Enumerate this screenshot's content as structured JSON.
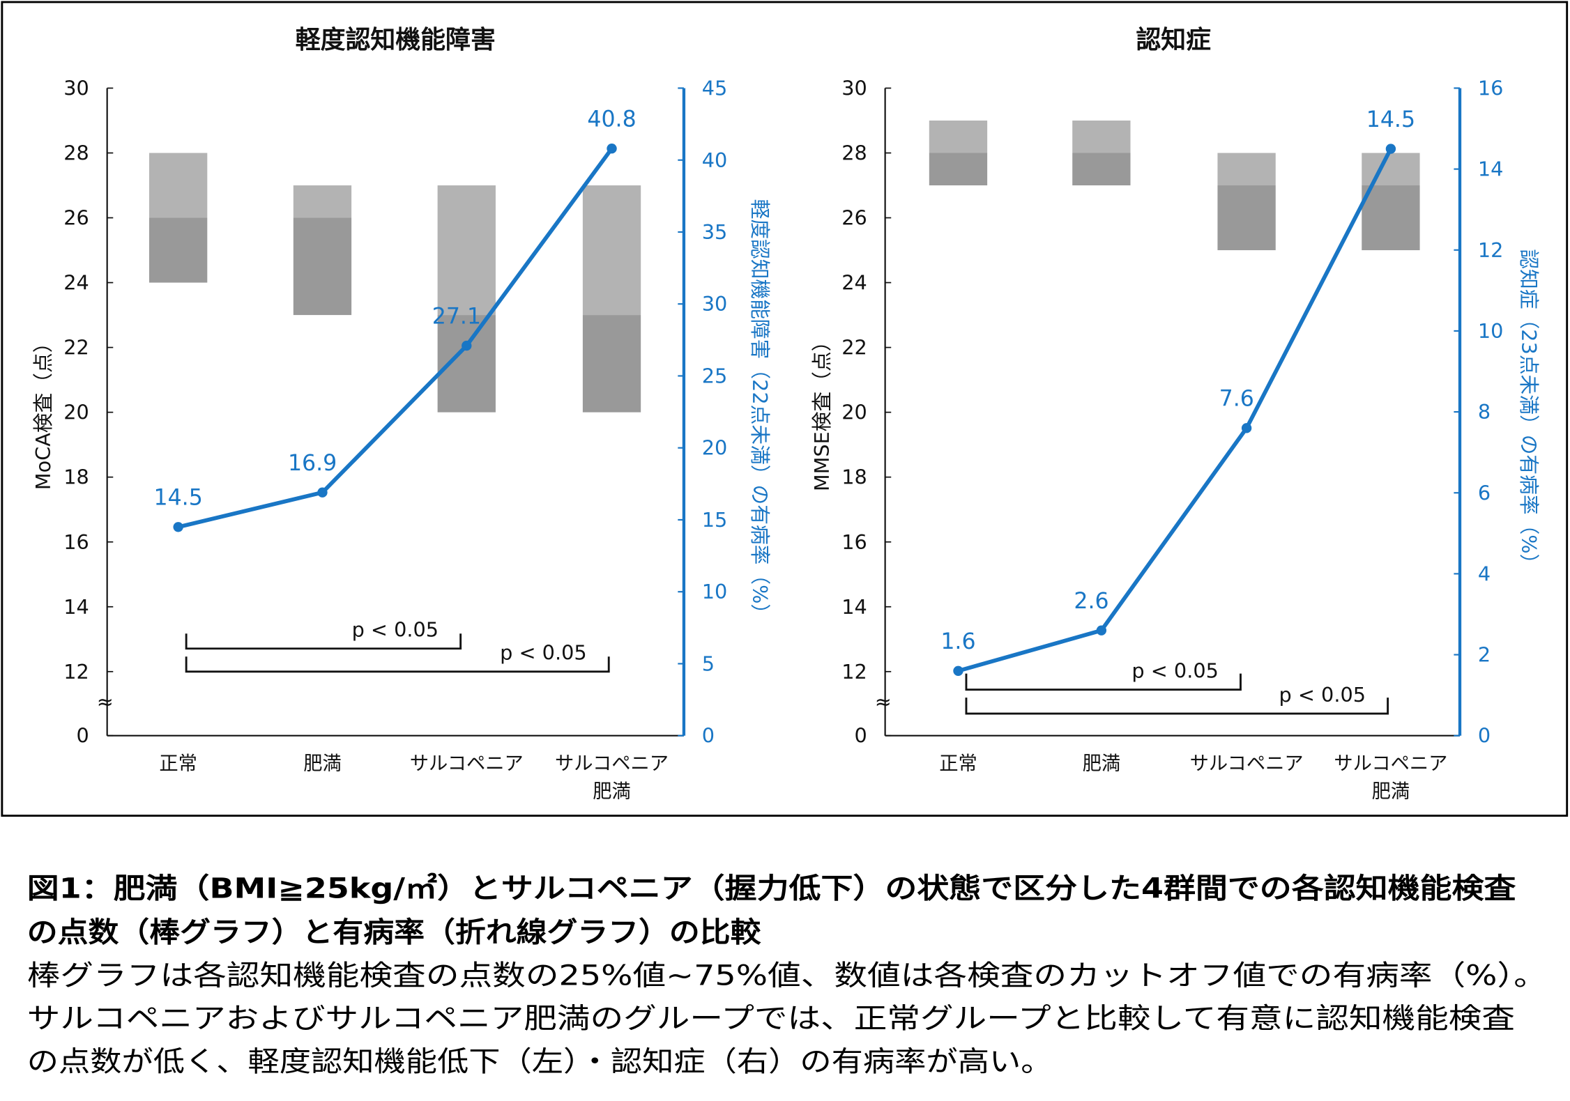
{
  "chart_data": [
    {
      "type": "bar+line",
      "title": "軽度認知機能障害",
      "categories": [
        "正常",
        "肥満",
        "サルコペニア",
        "サルコペニア|肥満"
      ],
      "ylabel": "MoCA検査（点）",
      "y2label": "軽度認知機能障害（22点未満）の有病率（%）",
      "ylim": [
        12,
        30
      ],
      "y_ticks": [
        "30",
        "28",
        "26",
        "24",
        "22",
        "20",
        "18",
        "16",
        "14",
        "12",
        "0"
      ],
      "y_break": "≈",
      "y2lim": [
        0,
        45
      ],
      "y2_ticks": [
        "45",
        "40",
        "35",
        "30",
        "25",
        "20",
        "15",
        "10",
        "5",
        "0"
      ],
      "bars": [
        {
          "q1": 24,
          "median": 26,
          "q3": 28
        },
        {
          "q1": 23,
          "median": 26,
          "q3": 27
        },
        {
          "q1": 20,
          "median": 23,
          "q3": 27
        },
        {
          "q1": 20,
          "median": 23,
          "q3": 27
        }
      ],
      "line_values": [
        14.5,
        16.9,
        27.1,
        40.8
      ],
      "line_labels": [
        "14.5",
        "16.9",
        "27.1",
        "40.8"
      ],
      "significance": [
        {
          "from": 0,
          "to": 2,
          "label": "p < 0.05"
        },
        {
          "from": 0,
          "to": 3,
          "label": "p < 0.05"
        }
      ]
    },
    {
      "type": "bar+line",
      "title": "認知症",
      "categories": [
        "正常",
        "肥満",
        "サルコペニア",
        "サルコペニア|肥満"
      ],
      "ylabel": "MMSE検査（点）",
      "y2label": "認知症（23点未満）の有病率（%）",
      "ylim": [
        12,
        30
      ],
      "y_ticks": [
        "30",
        "28",
        "26",
        "24",
        "22",
        "20",
        "18",
        "16",
        "14",
        "12",
        "0"
      ],
      "y_break": "≈",
      "y2lim": [
        0,
        16
      ],
      "y2_ticks": [
        "16",
        "14",
        "12",
        "10",
        "8",
        "6",
        "4",
        "2",
        "0"
      ],
      "bars": [
        {
          "q1": 27,
          "median": 28,
          "q3": 29
        },
        {
          "q1": 27,
          "median": 28,
          "q3": 29
        },
        {
          "q1": 25,
          "median": 27,
          "q3": 28
        },
        {
          "q1": 25,
          "median": 27,
          "q3": 28
        }
      ],
      "line_values": [
        1.6,
        2.6,
        7.6,
        14.5
      ],
      "line_labels": [
        "1.6",
        "2.6",
        "7.6",
        "14.5"
      ],
      "significance": [
        {
          "from": 0,
          "to": 2,
          "label": "p < 0.05"
        },
        {
          "from": 0,
          "to": 3,
          "label": "p < 0.05"
        }
      ]
    }
  ],
  "colors": {
    "bar_upper": "#b3b3b3",
    "bar_lower": "#999999",
    "line": "#1976c5",
    "text": "#111111"
  },
  "caption": {
    "title_line1": "図1：肥満（BMI≧25kg/㎡）とサルコペニア（握力低下）の状態で区分した4群間での各認知機能検査",
    "title_line2": "の点数（棒グラフ）と有病率（折れ線グラフ）の比較",
    "body_line1": "棒グラフは各認知機能検査の点数の25%値~75%値、数値は各検査のカットオフ値での有病率（%）。",
    "body_line2": "サルコペニアおよびサルコペニア肥満のグループでは、正常グループと比較して有意に認知機能検査",
    "body_line3": "の点数が低く、軽度認知機能低下（左）・認知症（右）の有病率が高い。"
  }
}
